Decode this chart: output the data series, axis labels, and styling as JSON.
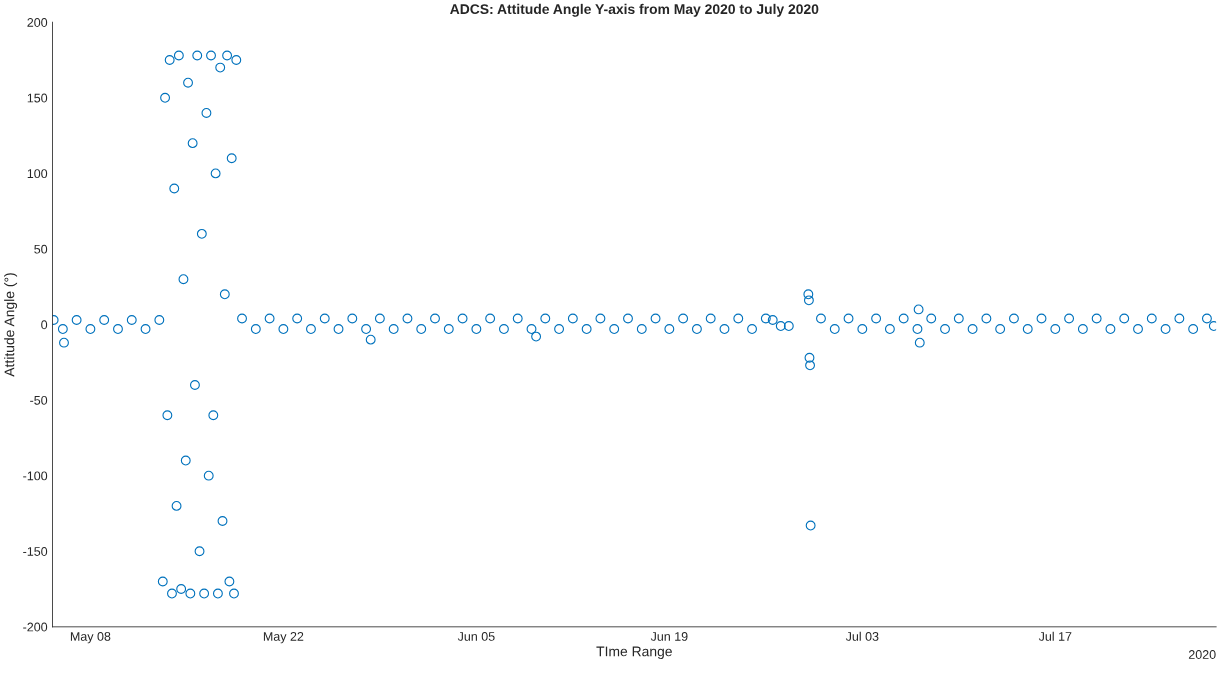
{
  "chart_data": {
    "type": "scatter",
    "title": "ADCS: Attitude Angle Y-axis from May 2020 to July 2020",
    "xlabel": "TIme Range",
    "ylabel": "Attitude Angle (°)",
    "marker": "circle",
    "grid": false,
    "legend": false,
    "xlim": [
      "2020-05-05T06:00",
      "2020-07-28T16:00"
    ],
    "xticks": [
      {
        "value": "2020-05-08",
        "label": "May 08"
      },
      {
        "value": "2020-05-22",
        "label": "May 22"
      },
      {
        "value": "2020-06-05",
        "label": "Jun 05"
      },
      {
        "value": "2020-06-19",
        "label": "Jun 19"
      },
      {
        "value": "2020-07-03",
        "label": "Jul 03"
      },
      {
        "value": "2020-07-17",
        "label": "Jul 17"
      }
    ],
    "ylim": [
      -200,
      200
    ],
    "yticks": [
      -200,
      -150,
      -100,
      -50,
      0,
      50,
      100,
      150,
      200
    ],
    "annotations": [
      "2020"
    ],
    "series": [
      {
        "color": "#0072bd",
        "x": [
          "2020-05-05T08:00",
          "2020-05-06",
          "2020-05-06T02:00",
          "2020-05-07",
          "2020-05-08",
          "2020-05-09",
          "2020-05-10",
          "2020-05-11",
          "2020-05-12",
          "2020-05-13",
          "2020-05-13T06:00",
          "2020-05-13T10:00",
          "2020-05-13T14:00",
          "2020-05-13T18:00",
          "2020-05-13T22:00",
          "2020-05-14T02:00",
          "2020-05-14T06:00",
          "2020-05-14T10:00",
          "2020-05-14T14:00",
          "2020-05-14T18:00",
          "2020-05-14T22:00",
          "2020-05-15T02:00",
          "2020-05-15T06:00",
          "2020-05-15T10:00",
          "2020-05-15T14:00",
          "2020-05-15T18:00",
          "2020-05-15T22:00",
          "2020-05-16T02:00",
          "2020-05-16T06:00",
          "2020-05-16T10:00",
          "2020-05-16T14:00",
          "2020-05-16T18:00",
          "2020-05-16T22:00",
          "2020-05-17T02:00",
          "2020-05-17T06:00",
          "2020-05-17T10:00",
          "2020-05-17T14:00",
          "2020-05-17T18:00",
          "2020-05-17T22:00",
          "2020-05-18T02:00",
          "2020-05-18T06:00",
          "2020-05-18T10:00",
          "2020-05-18T14:00",
          "2020-05-19",
          "2020-05-20",
          "2020-05-21",
          "2020-05-22",
          "2020-05-23",
          "2020-05-24",
          "2020-05-25",
          "2020-05-26",
          "2020-05-27",
          "2020-05-28",
          "2020-05-28T08:00",
          "2020-05-29",
          "2020-05-30",
          "2020-05-31",
          "2020-06-01",
          "2020-06-02",
          "2020-06-03",
          "2020-06-04",
          "2020-06-05",
          "2020-06-06",
          "2020-06-07",
          "2020-06-08",
          "2020-06-09",
          "2020-06-09T08:00",
          "2020-06-10",
          "2020-06-11",
          "2020-06-12",
          "2020-06-13",
          "2020-06-14",
          "2020-06-15",
          "2020-06-16",
          "2020-06-17",
          "2020-06-18",
          "2020-06-19",
          "2020-06-20",
          "2020-06-21",
          "2020-06-22",
          "2020-06-23",
          "2020-06-24",
          "2020-06-25",
          "2020-06-26",
          "2020-06-26T12:00",
          "2020-06-27T02:00",
          "2020-06-27T16:00",
          "2020-06-29T02:00",
          "2020-06-29T03:00",
          "2020-06-29T04:00",
          "2020-06-29T05:00",
          "2020-06-29T06:00",
          "2020-06-30",
          "2020-07-01",
          "2020-07-02",
          "2020-07-03",
          "2020-07-04",
          "2020-07-05",
          "2020-07-06",
          "2020-07-07",
          "2020-07-07T02:00",
          "2020-07-07T04:00",
          "2020-07-08",
          "2020-07-09",
          "2020-07-10",
          "2020-07-11",
          "2020-07-12",
          "2020-07-13",
          "2020-07-14",
          "2020-07-15",
          "2020-07-16",
          "2020-07-17",
          "2020-07-18",
          "2020-07-19",
          "2020-07-20",
          "2020-07-21",
          "2020-07-22",
          "2020-07-23",
          "2020-07-24",
          "2020-07-25",
          "2020-07-26",
          "2020-07-27",
          "2020-07-28",
          "2020-07-28T12:00"
        ],
        "values": [
          3,
          -3,
          -12,
          3,
          -3,
          3,
          -3,
          3,
          -3,
          3,
          -170,
          150,
          -60,
          175,
          -178,
          90,
          -120,
          178,
          -175,
          30,
          -90,
          160,
          -178,
          120,
          -40,
          178,
          -150,
          60,
          -178,
          140,
          -100,
          178,
          -60,
          100,
          -178,
          170,
          -130,
          20,
          178,
          -170,
          110,
          -178,
          175,
          4,
          -3,
          4,
          -3,
          4,
          -3,
          4,
          -3,
          4,
          -3,
          -10,
          4,
          -3,
          4,
          -3,
          4,
          -3,
          4,
          -3,
          4,
          -3,
          4,
          -3,
          -8,
          4,
          -3,
          4,
          -3,
          4,
          -3,
          4,
          -3,
          4,
          -3,
          4,
          -3,
          4,
          -3,
          4,
          -3,
          4,
          3,
          -1,
          -1,
          20,
          16,
          -22,
          -27,
          -133,
          4,
          -3,
          4,
          -3,
          4,
          -3,
          4,
          -3,
          10,
          -12,
          4,
          -3,
          4,
          -3,
          4,
          -3,
          4,
          -3,
          4,
          -3,
          4,
          -3,
          4,
          -3,
          4,
          -3,
          4,
          -3,
          4,
          -3,
          4,
          -1
        ]
      }
    ]
  }
}
